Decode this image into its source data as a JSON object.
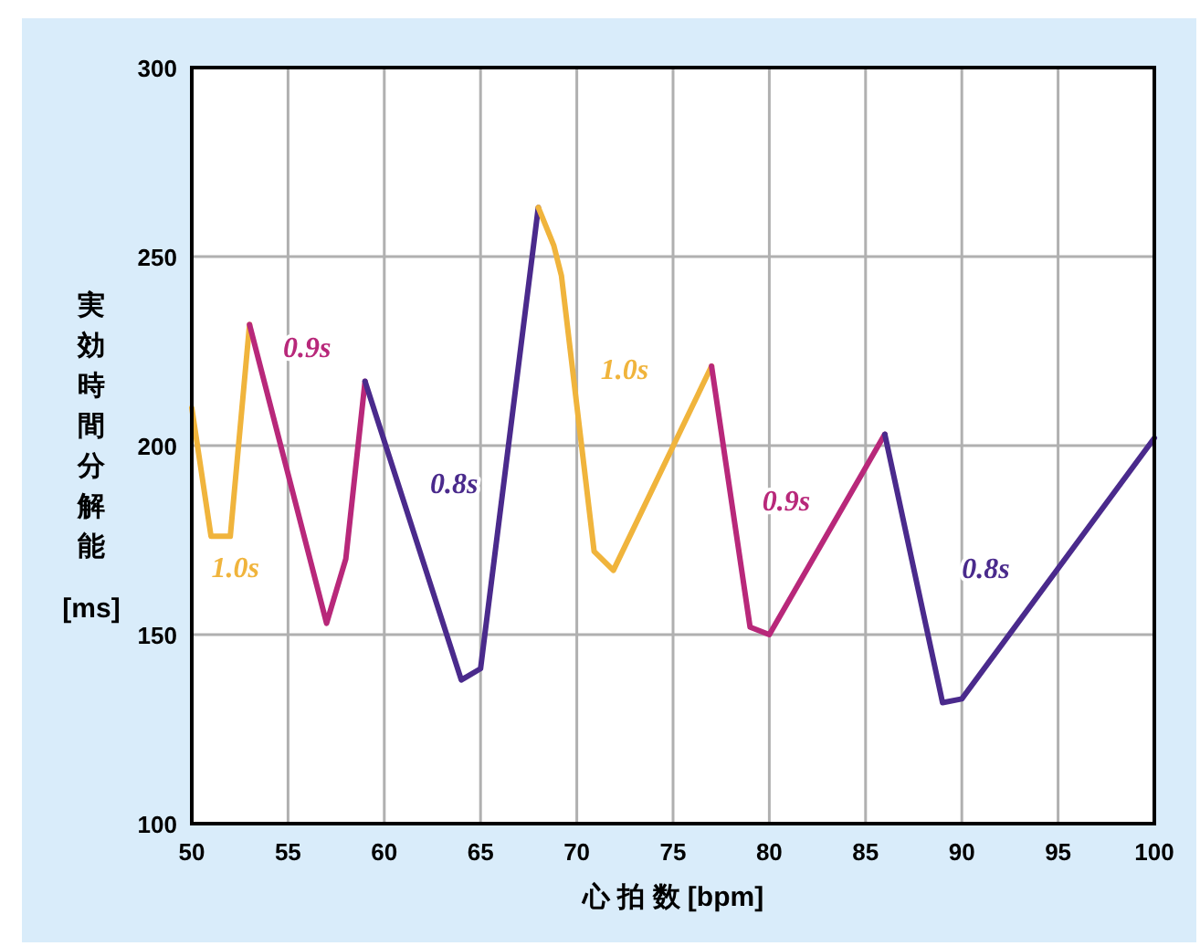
{
  "chart_data": {
    "type": "line",
    "xlabel": "心 拍 数 [bpm]",
    "ylabel": "実効時間分解能 [ms]",
    "xlim": [
      50,
      100
    ],
    "xticks": [
      50,
      55,
      60,
      65,
      70,
      75,
      80,
      85,
      90,
      95,
      100
    ],
    "ylim": [
      100,
      300
    ],
    "yticks": [
      100,
      150,
      200,
      250,
      300
    ],
    "grid": true,
    "line_style": "solid",
    "marker": "none",
    "series": [
      {
        "name": "1.0s",
        "color": "#f0b43c",
        "x": [
          50,
          51,
          52,
          53
        ],
        "values": [
          210,
          176,
          176,
          232
        ]
      },
      {
        "name": "0.9s",
        "color": "#b8287a",
        "x": [
          53,
          57,
          58,
          59
        ],
        "values": [
          232,
          153,
          170,
          217
        ]
      },
      {
        "name": "0.8s",
        "color": "#4a2a8c",
        "x": [
          59,
          64,
          65,
          68
        ],
        "values": [
          217,
          138,
          141,
          263
        ]
      },
      {
        "name": "1.0s",
        "color": "#f0b43c",
        "x": [
          68,
          68.8,
          69.2,
          70.9,
          71.9,
          77
        ],
        "values": [
          263,
          253,
          245,
          172,
          167,
          221
        ]
      },
      {
        "name": "0.9s",
        "color": "#b8287a",
        "x": [
          77,
          79,
          80,
          86
        ],
        "values": [
          221,
          152,
          150,
          203
        ]
      },
      {
        "name": "0.8s",
        "color": "#4a2a8c",
        "x": [
          86,
          89,
          90,
          100
        ],
        "values": [
          203,
          132,
          133,
          202
        ]
      }
    ]
  }
}
